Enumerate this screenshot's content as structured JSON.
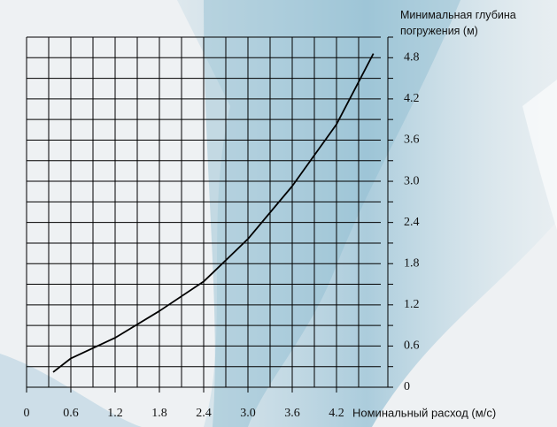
{
  "chart_data": {
    "type": "line",
    "y_label": "Минимальная глубина погружения (м)",
    "x_label": "Номинальный расход (м/с)",
    "x": [
      0.36,
      0.6,
      1.2,
      1.8,
      2.4,
      3.0,
      3.6,
      4.2,
      4.7
    ],
    "series": [
      {
        "color": "#000000",
        "values": [
          0.22,
          0.42,
          0.72,
          1.11,
          1.54,
          2.16,
          2.93,
          3.83,
          4.86
        ]
      }
    ],
    "xlim": [
      0,
      4.8
    ],
    "ylim": [
      0,
      5.1
    ],
    "xticks": [
      0,
      0.6,
      1.2,
      1.8,
      2.4,
      {
        "value": 3,
        "label": "3.0"
      },
      3.6,
      4.2
    ],
    "yticks": [
      0,
      0.6,
      1.2,
      1.8,
      2.4,
      {
        "value": 3,
        "label": "3.0"
      },
      3.6,
      4.2,
      4.8
    ],
    "grid": true
  }
}
